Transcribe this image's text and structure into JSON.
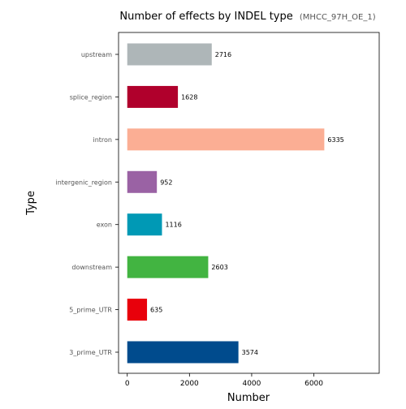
{
  "chart_data": {
    "type": "bar",
    "orientation": "horizontal",
    "title": "Number of effects by INDEL type",
    "subtitle": "(MHCC_97H_OE_1)",
    "xlabel": "Number",
    "ylabel": "Type",
    "xlim": [
      -280,
      8100
    ],
    "xticks": [
      0,
      2000,
      4000,
      6000
    ],
    "grid": false,
    "legend": "none",
    "categories": [
      "upstream",
      "splice_region",
      "intron",
      "intergenic_region",
      "exon",
      "downstream",
      "5_prime_UTR",
      "3_prime_UTR"
    ],
    "values": [
      2716,
      1628,
      6335,
      952,
      1116,
      2603,
      635,
      3574
    ],
    "colors": [
      "#aeb6b8",
      "#b0002c",
      "#fbae94",
      "#9a62a4",
      "#0099b5",
      "#42b441",
      "#e8000b",
      "#004b8d"
    ]
  }
}
